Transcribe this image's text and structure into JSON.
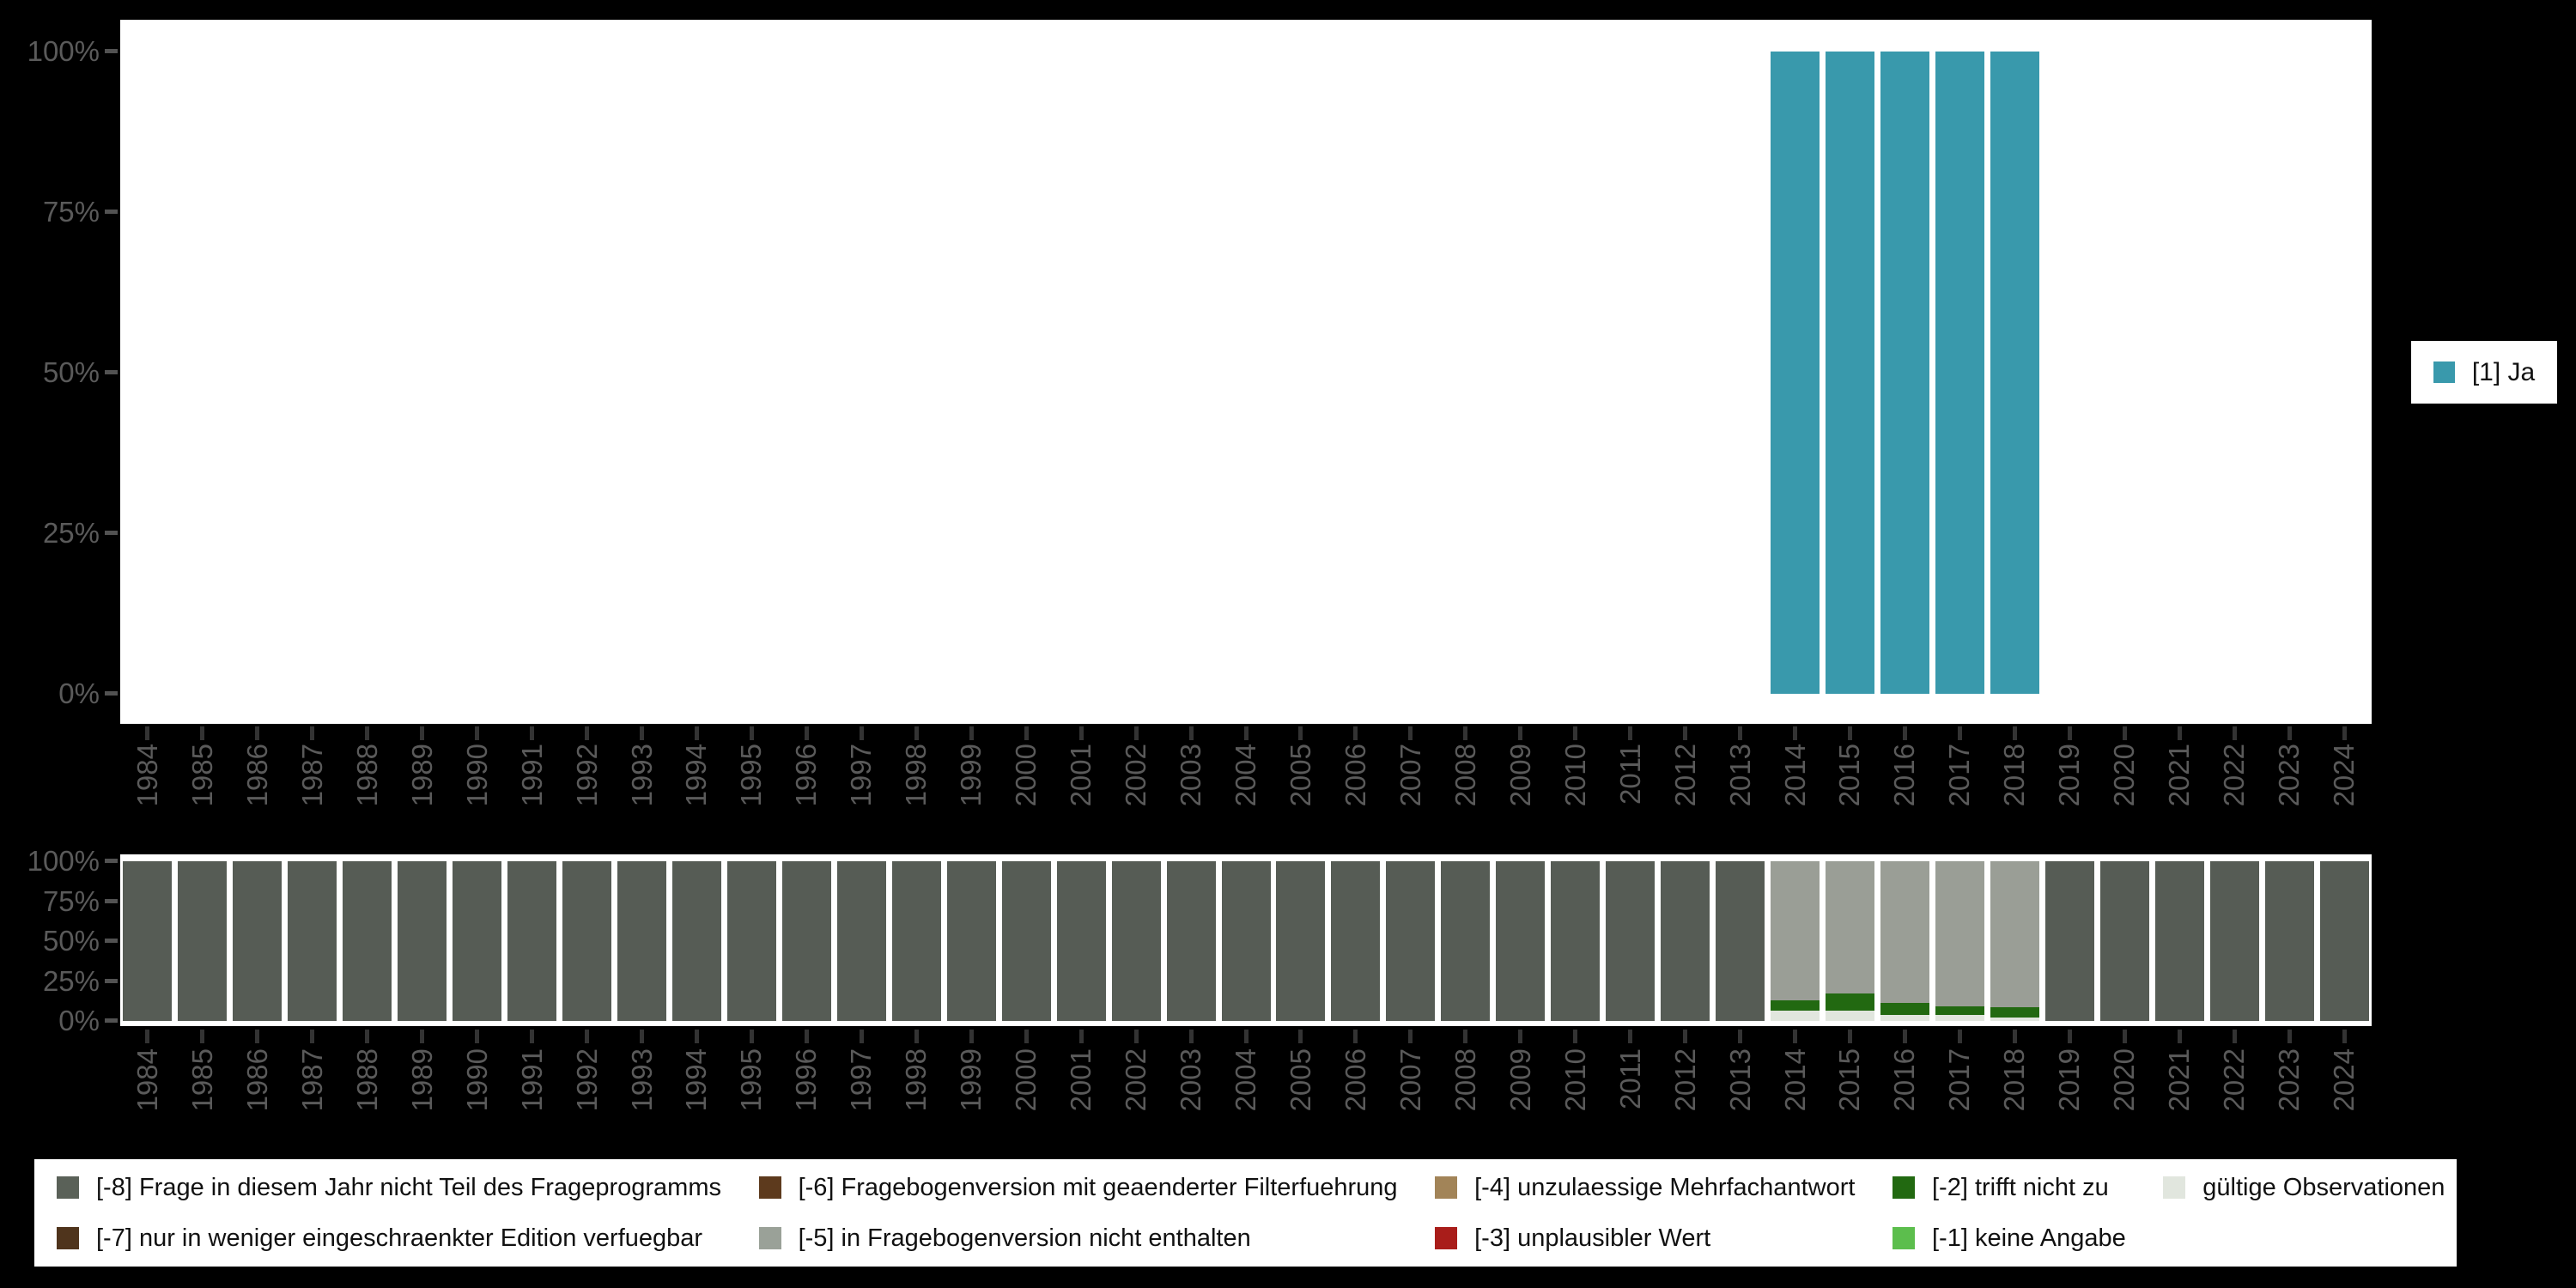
{
  "app": {
    "description": "Stacked bar chart pair showing a yes/no survey item over panel waves with missing-value codes",
    "background_color": "#000000",
    "plot_background_color": "#ffffff",
    "axis_label_color": "#5a5a5a"
  },
  "right_legend": {
    "items": [
      {
        "label": "[1] Ja",
        "color": "#3999ac"
      }
    ]
  },
  "bottom_legend": {
    "items": [
      {
        "label": "[-8] Frage in diesem Jahr nicht Teil des Frageprogramms",
        "color": "#5a6158"
      },
      {
        "label": "[-7] nur in weniger eingeschraenkter Edition verfuegbar",
        "color": "#4f341c"
      },
      {
        "label": "[-6] Fragebogenversion mit geaenderter Filterfuehrung",
        "color": "#5d3a1d"
      },
      {
        "label": "[-5] in Fragebogenversion nicht enthalten",
        "color": "#9aa198"
      },
      {
        "label": "[-4] unzulaessige Mehrfachantwort",
        "color": "#a28458"
      },
      {
        "label": "[-3] unplausibler Wert",
        "color": "#a91d1a"
      },
      {
        "label": "[-2] trifft nicht zu",
        "color": "#226911"
      },
      {
        "label": "[-1] keine Angabe",
        "color": "#5cbe4d"
      },
      {
        "label": "gültige Observationen",
        "color": "#e1e6de"
      }
    ]
  },
  "chart_data": [
    {
      "id": "top",
      "type": "bar",
      "stacked": false,
      "title": "",
      "xlabel": "",
      "ylabel": "",
      "ylim": [
        0,
        100
      ],
      "grid": false,
      "legend_position": "right",
      "y_tick_labels": [
        "0%",
        "25%",
        "50%",
        "75%",
        "100%"
      ],
      "categories": [
        "1984",
        "1985",
        "1986",
        "1987",
        "1988",
        "1989",
        "1990",
        "1991",
        "1992",
        "1993",
        "1994",
        "1995",
        "1996",
        "1997",
        "1998",
        "1999",
        "2000",
        "2001",
        "2002",
        "2003",
        "2004",
        "2005",
        "2006",
        "2007",
        "2008",
        "2009",
        "2010",
        "2011",
        "2012",
        "2013",
        "2014",
        "2015",
        "2016",
        "2017",
        "2018",
        "2019",
        "2020",
        "2021",
        "2022",
        "2023",
        "2024"
      ],
      "series": [
        {
          "name": "[1] Ja",
          "color": "#3999ac",
          "values": [
            0,
            0,
            0,
            0,
            0,
            0,
            0,
            0,
            0,
            0,
            0,
            0,
            0,
            0,
            0,
            0,
            0,
            0,
            0,
            0,
            0,
            0,
            0,
            0,
            0,
            0,
            0,
            0,
            0,
            0,
            100,
            100,
            100,
            100,
            100,
            0,
            0,
            0,
            0,
            0,
            0
          ]
        }
      ]
    },
    {
      "id": "bottom",
      "type": "bar",
      "stacked": true,
      "title": "",
      "xlabel": "",
      "ylabel": "",
      "ylim": [
        0,
        100
      ],
      "grid": false,
      "legend_position": "bottom",
      "y_tick_labels": [
        "0%",
        "25%",
        "50%",
        "75%",
        "100%"
      ],
      "categories": [
        "1984",
        "1985",
        "1986",
        "1987",
        "1988",
        "1989",
        "1990",
        "1991",
        "1992",
        "1993",
        "1994",
        "1995",
        "1996",
        "1997",
        "1998",
        "1999",
        "2000",
        "2001",
        "2002",
        "2003",
        "2004",
        "2005",
        "2006",
        "2007",
        "2008",
        "2009",
        "2010",
        "2011",
        "2012",
        "2013",
        "2014",
        "2015",
        "2016",
        "2017",
        "2018",
        "2019",
        "2020",
        "2021",
        "2022",
        "2023",
        "2024"
      ],
      "series": [
        {
          "name": "gültige Observationen",
          "color": "#e1e6de",
          "values": [
            0,
            0,
            0,
            0,
            0,
            0,
            0,
            0,
            0,
            0,
            0,
            0,
            0,
            0,
            0,
            0,
            0,
            0,
            0,
            0,
            0,
            0,
            0,
            0,
            0,
            0,
            0,
            0,
            0,
            0,
            6.2,
            6.2,
            4,
            3.5,
            2.4,
            0,
            0,
            0,
            0,
            0,
            0
          ]
        },
        {
          "name": "[-2] trifft nicht zu",
          "color": "#226911",
          "values": [
            0,
            0,
            0,
            0,
            0,
            0,
            0,
            0,
            0,
            0,
            0,
            0,
            0,
            0,
            0,
            0,
            0,
            0,
            0,
            0,
            0,
            0,
            0,
            0,
            0,
            0,
            0,
            0,
            0,
            0,
            6.9,
            11.2,
            7.5,
            5.9,
            6.4,
            0,
            0,
            0,
            0,
            0,
            0
          ]
        },
        {
          "name": "[-5] in Fragebogenversion nicht enthalten",
          "color": "#9a9e96",
          "values": [
            0,
            0,
            0,
            0,
            0,
            0,
            0,
            0,
            0,
            0,
            0,
            0,
            0,
            0,
            0,
            0,
            0,
            0,
            0,
            0,
            0,
            0,
            0,
            0,
            0,
            0,
            0,
            0,
            0,
            0,
            86.9,
            82.6,
            88.5,
            90.6,
            91.2,
            0,
            0,
            0,
            0,
            0,
            0
          ]
        },
        {
          "name": "[-8] Frage in diesem Jahr nicht Teil des Frageprogramms",
          "color": "#565c55",
          "values": [
            100,
            100,
            100,
            100,
            100,
            100,
            100,
            100,
            100,
            100,
            100,
            100,
            100,
            100,
            100,
            100,
            100,
            100,
            100,
            100,
            100,
            100,
            100,
            100,
            100,
            100,
            100,
            100,
            100,
            100,
            0,
            0,
            0,
            0,
            0,
            100,
            100,
            100,
            100,
            100,
            100
          ]
        }
      ]
    }
  ]
}
